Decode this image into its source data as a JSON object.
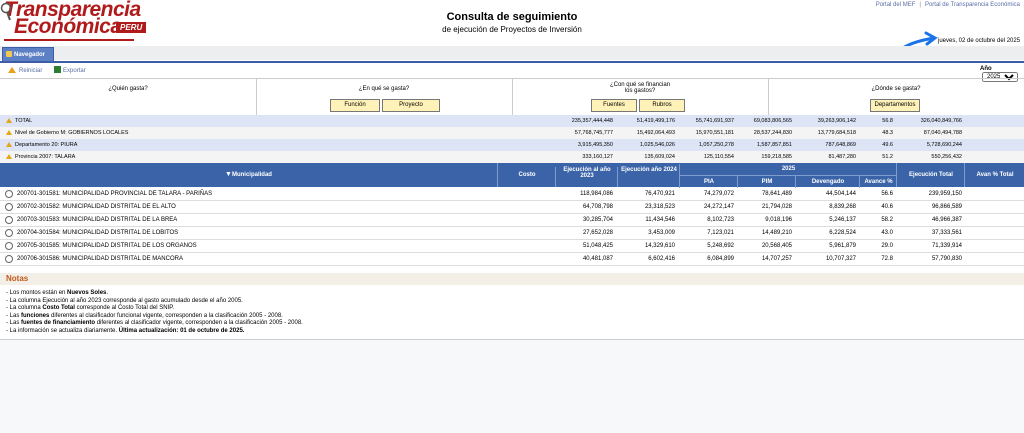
{
  "logo": {
    "line1": "Transparencia",
    "line2": "Económica",
    "tag": "PERU"
  },
  "top_links": [
    "Portal del MEF",
    "Portal de Transparencia Económica"
  ],
  "header": {
    "title": "Consulta de seguimiento",
    "subtitle": "de ejecución de Proyectos de Inversión",
    "date": "jueves, 02 de octubre del 2025"
  },
  "nav_tab": "Navegador",
  "toolbar": {
    "reiniciar": "Reiniciar",
    "exportar": "Exportar",
    "anio_label": "Año",
    "anio_value": "2025"
  },
  "questions": [
    {
      "text": "¿Quién gasta?",
      "buttons": []
    },
    {
      "text": "¿En qué se gasta?",
      "buttons": [
        "Función",
        "Proyecto"
      ]
    },
    {
      "text": "¿Con qué se financian los gastos?",
      "buttons": [
        "Fuentes",
        "Rubros"
      ]
    },
    {
      "text": "¿Dónde se gasta?",
      "buttons": [
        "Departamentos"
      ]
    }
  ],
  "summary": [
    {
      "label": "TOTAL",
      "e2023": "235,357,444,448",
      "e2024": "51,419,499,176",
      "pia": "55,741,691,937",
      "pim": "69,083,806,565",
      "dev": "39,263,906,142",
      "avance": "56.8",
      "etotal": "326,040,849,766"
    },
    {
      "label": "Nivel de Gobierno M: GOBIERNOS LOCALES",
      "e2023": "57,768,745,777",
      "e2024": "15,492,064,493",
      "pia": "15,970,551,181",
      "pim": "28,537,244,830",
      "dev": "13,779,684,518",
      "avance": "48.3",
      "etotal": "87,040,494,788"
    },
    {
      "label": "Departamento 20: PIURA",
      "e2023": "3,915,495,350",
      "e2024": "1,025,546,026",
      "pia": "1,057,250,278",
      "pim": "1,587,857,851",
      "dev": "787,648,869",
      "avance": "49.6",
      "etotal": "5,728,690,244"
    },
    {
      "label": "Provincia 2007: TALARA",
      "e2023": "333,160,127",
      "e2024": "135,609,024",
      "pia": "125,110,554",
      "pim": "159,218,585",
      "dev": "81,487,280",
      "avance": "51.2",
      "etotal": "550,256,432"
    }
  ],
  "table_header": {
    "municipalidad": "Municipalidad",
    "costo": "Costo",
    "e2023": "Ejecución al año 2023",
    "e2024": "Ejecución año 2024",
    "y2025": "2025",
    "pia": "PIA",
    "pim": "PIM",
    "dev": "Devengado",
    "avance": "Avance %",
    "etotal": "Ejecución Total",
    "avan_total": "Avan % Total"
  },
  "rows": [
    {
      "name": "200701-301581: MUNICIPALIDAD PROVINCIAL DE TALARA - PARIÑAS",
      "e2023": "118,984,086",
      "e2024": "76,470,921",
      "pia": "74,279,072",
      "pim": "78,641,489",
      "dev": "44,504,144",
      "avance": "56.6",
      "etotal": "239,959,150"
    },
    {
      "name": "200702-301582: MUNICIPALIDAD DISTRITAL DE EL ALTO",
      "e2023": "64,708,798",
      "e2024": "23,318,523",
      "pia": "24,272,147",
      "pim": "21,794,028",
      "dev": "8,839,268",
      "avance": "40.6",
      "etotal": "96,866,589"
    },
    {
      "name": "200703-301583: MUNICIPALIDAD DISTRITAL DE LA BREA",
      "e2023": "30,285,704",
      "e2024": "11,434,546",
      "pia": "8,102,723",
      "pim": "9,018,196",
      "dev": "5,246,137",
      "avance": "58.2",
      "etotal": "46,966,387"
    },
    {
      "name": "200704-301584: MUNICIPALIDAD DISTRITAL DE LOBITOS",
      "e2023": "27,652,028",
      "e2024": "3,453,009",
      "pia": "7,123,021",
      "pim": "14,489,210",
      "dev": "6,228,524",
      "avance": "43.0",
      "etotal": "37,333,561"
    },
    {
      "name": "200705-301585: MUNICIPALIDAD DISTRITAL DE LOS ORGANOS",
      "e2023": "51,048,425",
      "e2024": "14,329,610",
      "pia": "5,248,692",
      "pim": "20,568,405",
      "dev": "5,961,879",
      "avance": "29.0",
      "etotal": "71,339,914"
    },
    {
      "name": "200706-301586: MUNICIPALIDAD DISTRITAL DE MANCORA",
      "e2023": "40,481,087",
      "e2024": "6,602,416",
      "pia": "6,084,899",
      "pim": "14,707,257",
      "dev": "10,707,327",
      "avance": "72.8",
      "etotal": "57,790,830"
    }
  ],
  "notes": {
    "title": "Notas",
    "lines": [
      {
        "pre": "Los montos están en ",
        "bold": "Nuevos Soles",
        "post": "."
      },
      {
        "pre": "La columna Ejecución al año 2023 corresponde al gasto acumulado desde el año 2005.",
        "bold": "",
        "post": ""
      },
      {
        "pre": "La columna ",
        "bold": "Costo Total",
        "post": " corresponde al Costo Total del SNIP."
      },
      {
        "pre": "Las ",
        "bold": "funciones",
        "post": " diferentes al clasificador funcional vigente, corresponden a la clasificación 2005 - 2008."
      },
      {
        "pre": "Las ",
        "bold": "fuentes de financiamiento",
        "post": " diferentes al clasificador vigente, corresponden a la clasificación 2005 - 2008."
      },
      {
        "pre": "La información se actualiza diariamente. ",
        "bold": "Última actualización: 01 de octubre de 2025.",
        "post": ""
      }
    ]
  }
}
